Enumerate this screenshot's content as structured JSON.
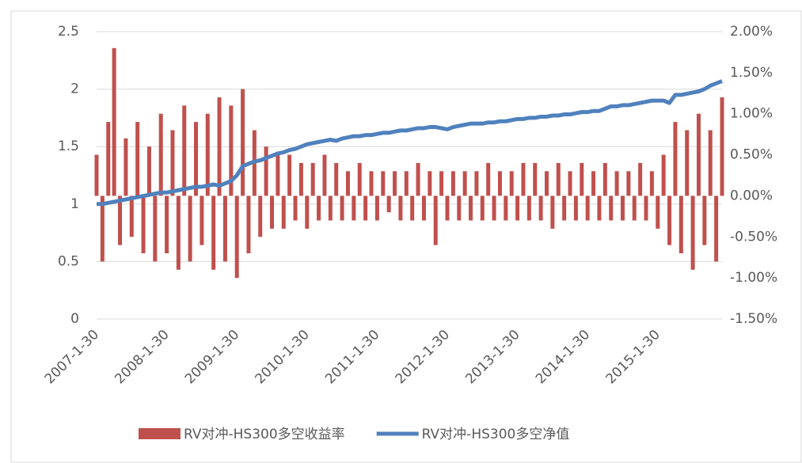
{
  "chart_data": {
    "type": "bar",
    "categories": [
      "2007-1-30",
      null,
      null,
      null,
      null,
      null,
      null,
      null,
      null,
      null,
      null,
      null,
      "2008-1-30",
      null,
      null,
      null,
      null,
      null,
      null,
      null,
      null,
      null,
      null,
      null,
      "2009-1-30",
      null,
      null,
      null,
      null,
      null,
      null,
      null,
      null,
      null,
      null,
      null,
      "2010-1-30",
      null,
      null,
      null,
      null,
      null,
      null,
      null,
      null,
      null,
      null,
      null,
      "2011-1-30",
      null,
      null,
      null,
      null,
      null,
      null,
      null,
      null,
      null,
      null,
      null,
      "2012-1-30",
      null,
      null,
      null,
      null,
      null,
      null,
      null,
      null,
      null,
      null,
      null,
      "2013-1-30",
      null,
      null,
      null,
      null,
      null,
      null,
      null,
      null,
      null,
      null,
      null,
      "2014-1-30",
      null,
      null,
      null,
      null,
      null,
      null,
      null,
      null,
      null,
      null,
      null,
      "2015-1-30",
      null,
      null,
      null,
      null,
      null,
      null,
      null,
      null,
      null,
      null,
      null
    ],
    "series": [
      {
        "name": "RV对冲-HS300多空收益率",
        "type": "bar",
        "axis": "y2",
        "color": "#c0504d",
        "values": [
          0.5,
          -0.8,
          0.9,
          1.8,
          -0.6,
          0.7,
          -0.5,
          0.9,
          -0.7,
          0.6,
          -0.8,
          1.0,
          -0.7,
          0.8,
          -0.9,
          1.1,
          -0.8,
          0.9,
          -0.6,
          1.0,
          -0.9,
          1.2,
          -0.8,
          1.1,
          -1.0,
          1.3,
          -0.7,
          0.8,
          -0.5,
          0.6,
          -0.4,
          0.5,
          -0.4,
          0.5,
          -0.3,
          0.4,
          -0.4,
          0.4,
          -0.3,
          0.5,
          -0.3,
          0.4,
          -0.3,
          0.3,
          -0.3,
          0.4,
          -0.3,
          0.3,
          -0.3,
          0.3,
          -0.2,
          0.3,
          -0.3,
          0.3,
          -0.3,
          0.4,
          -0.3,
          0.3,
          -0.6,
          0.3,
          -0.3,
          0.3,
          -0.3,
          0.3,
          -0.3,
          0.3,
          -0.3,
          0.4,
          -0.3,
          0.3,
          -0.3,
          0.3,
          -0.3,
          0.4,
          -0.3,
          0.4,
          -0.3,
          0.3,
          -0.4,
          0.4,
          -0.3,
          0.3,
          -0.3,
          0.4,
          -0.3,
          0.3,
          -0.3,
          0.4,
          -0.3,
          0.3,
          -0.3,
          0.3,
          -0.3,
          0.4,
          -0.3,
          0.3,
          -0.4,
          0.5,
          -0.6,
          0.9,
          -0.7,
          0.8,
          -0.9,
          1.0,
          -0.6,
          0.8,
          -0.8,
          1.2
        ]
      },
      {
        "name": "RV对冲-HS300多空净值",
        "type": "line",
        "axis": "y",
        "color": "#4f81bd",
        "values": [
          1.0,
          1.0,
          1.01,
          1.02,
          1.03,
          1.04,
          1.05,
          1.06,
          1.07,
          1.08,
          1.09,
          1.1,
          1.1,
          1.11,
          1.12,
          1.13,
          1.14,
          1.15,
          1.15,
          1.16,
          1.17,
          1.16,
          1.18,
          1.2,
          1.25,
          1.33,
          1.35,
          1.37,
          1.38,
          1.4,
          1.42,
          1.44,
          1.45,
          1.47,
          1.48,
          1.5,
          1.52,
          1.53,
          1.54,
          1.55,
          1.56,
          1.55,
          1.57,
          1.58,
          1.59,
          1.59,
          1.6,
          1.6,
          1.61,
          1.62,
          1.62,
          1.63,
          1.64,
          1.64,
          1.65,
          1.66,
          1.66,
          1.67,
          1.67,
          1.66,
          1.65,
          1.67,
          1.68,
          1.69,
          1.7,
          1.7,
          1.7,
          1.71,
          1.71,
          1.72,
          1.72,
          1.73,
          1.74,
          1.74,
          1.75,
          1.75,
          1.76,
          1.76,
          1.77,
          1.77,
          1.78,
          1.78,
          1.79,
          1.8,
          1.8,
          1.81,
          1.81,
          1.83,
          1.85,
          1.85,
          1.86,
          1.86,
          1.87,
          1.88,
          1.89,
          1.9,
          1.9,
          1.9,
          1.88,
          1.95,
          1.95,
          1.96,
          1.97,
          1.98,
          2.0,
          2.03,
          2.05,
          2.07
        ]
      }
    ],
    "ylim": [
      0,
      2.5
    ],
    "yticks": [
      0,
      0.5,
      1,
      1.5,
      2,
      2.5
    ],
    "y2lim": [
      -1.5,
      2
    ],
    "y2ticks": [
      {
        "value": -1.5,
        "label": "-1.50%"
      },
      {
        "value": -1,
        "label": "-1.00%"
      },
      {
        "value": -0.5,
        "label": "-0.50%"
      },
      {
        "value": 0,
        "label": "0.00%"
      },
      {
        "value": 0.5,
        "label": "0.50%"
      },
      {
        "value": 1,
        "label": "1.00%"
      },
      {
        "value": 1.5,
        "label": "1.50%"
      },
      {
        "value": 2,
        "label": "2.00%"
      }
    ],
    "grid": true,
    "legend": "bottom"
  }
}
